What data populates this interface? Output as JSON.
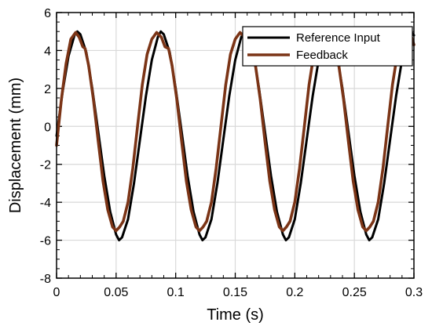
{
  "chart_data": {
    "type": "line",
    "title": "",
    "xlabel": "Time (s)",
    "ylabel": "Displacement (mm)",
    "xlim": [
      0,
      0.3
    ],
    "ylim": [
      -8,
      6
    ],
    "x_ticks": [
      0,
      0.05,
      0.1,
      0.15,
      0.2,
      0.25,
      0.3
    ],
    "x_tick_labels": [
      "0",
      "0.05",
      "0.1",
      "0.15",
      "0.2",
      "0.25",
      "0.3"
    ],
    "y_ticks": [
      -8,
      -6,
      -4,
      -2,
      0,
      2,
      4,
      6
    ],
    "y_tick_labels": [
      "-8",
      "-6",
      "-4",
      "-2",
      "0",
      "2",
      "4",
      "6"
    ],
    "grid": true,
    "legend_position": "top-right",
    "series": [
      {
        "name": "Reference Input",
        "color": "#000000",
        "x": [
          0,
          0.005,
          0.01,
          0.015,
          0.0175,
          0.02,
          0.025,
          0.03,
          0.035,
          0.04,
          0.045,
          0.05,
          0.0525,
          0.055,
          0.06,
          0.065,
          0.07,
          0.075,
          0.08,
          0.085,
          0.0875,
          0.09,
          0.095,
          0.1,
          0.105,
          0.11,
          0.115,
          0.12,
          0.1225,
          0.125,
          0.13,
          0.135,
          0.14,
          0.145,
          0.15,
          0.155,
          0.1575,
          0.16,
          0.165,
          0.17,
          0.175,
          0.18,
          0.185,
          0.19,
          0.1925,
          0.195,
          0.2,
          0.205,
          0.21,
          0.215,
          0.22,
          0.225,
          0.2275,
          0.23,
          0.235,
          0.24,
          0.245,
          0.25,
          0.255,
          0.26,
          0.2625,
          0.265,
          0.27,
          0.275,
          0.28,
          0.285,
          0.29,
          0.295,
          0.2975,
          0.3
        ],
        "y": [
          -0.5,
          1.8,
          3.7,
          4.8,
          5.0,
          4.85,
          3.9,
          2.0,
          -0.3,
          -2.6,
          -4.5,
          -5.7,
          -6.0,
          -5.85,
          -4.9,
          -3.0,
          -0.7,
          1.6,
          3.5,
          4.7,
          5.0,
          4.85,
          3.9,
          2.0,
          -0.3,
          -2.6,
          -4.5,
          -5.7,
          -6.0,
          -5.85,
          -4.9,
          -3.0,
          -0.7,
          1.6,
          3.5,
          4.7,
          5.0,
          4.85,
          3.9,
          2.0,
          -0.3,
          -2.6,
          -4.5,
          -5.7,
          -6.0,
          -5.85,
          -4.9,
          -3.0,
          -0.7,
          1.6,
          3.5,
          4.7,
          5.0,
          4.85,
          3.9,
          2.0,
          -0.3,
          -2.6,
          -4.5,
          -5.7,
          -6.0,
          -5.85,
          -4.9,
          -3.0,
          -0.7,
          1.6,
          3.5,
          4.7,
          5.0,
          4.8
        ]
      },
      {
        "name": "Feedback",
        "color": "#7b3416",
        "x": [
          0,
          0.004,
          0.008,
          0.012,
          0.016,
          0.019,
          0.022,
          0.024,
          0.027,
          0.031,
          0.035,
          0.039,
          0.043,
          0.047,
          0.05,
          0.053,
          0.056,
          0.06,
          0.064,
          0.068,
          0.072,
          0.076,
          0.08,
          0.084,
          0.088,
          0.091,
          0.094,
          0.097,
          0.101,
          0.105,
          0.109,
          0.113,
          0.117,
          0.12,
          0.123,
          0.126,
          0.13,
          0.134,
          0.138,
          0.142,
          0.146,
          0.15,
          0.154,
          0.158,
          0.161,
          0.164,
          0.167,
          0.171,
          0.175,
          0.179,
          0.183,
          0.187,
          0.19,
          0.193,
          0.196,
          0.2,
          0.204,
          0.208,
          0.212,
          0.216,
          0.22,
          0.224,
          0.228,
          0.231,
          0.234,
          0.237,
          0.241,
          0.245,
          0.249,
          0.253,
          0.257,
          0.26,
          0.263,
          0.266,
          0.27,
          0.274,
          0.278,
          0.282,
          0.286,
          0.29,
          0.294,
          0.298,
          0.3
        ],
        "y": [
          -1.0,
          1.4,
          3.3,
          4.6,
          4.95,
          4.7,
          4.2,
          4.1,
          3.2,
          1.4,
          -0.8,
          -2.9,
          -4.4,
          -5.3,
          -5.5,
          -5.3,
          -5.0,
          -4.0,
          -2.2,
          0.0,
          2.2,
          3.8,
          4.6,
          4.95,
          4.7,
          4.2,
          4.1,
          3.2,
          1.4,
          -0.8,
          -2.9,
          -4.4,
          -5.3,
          -5.5,
          -5.3,
          -5.0,
          -4.0,
          -2.2,
          0.0,
          2.2,
          3.8,
          4.6,
          4.95,
          4.7,
          4.2,
          4.1,
          3.2,
          1.4,
          -0.8,
          -2.9,
          -4.4,
          -5.3,
          -5.5,
          -5.3,
          -5.0,
          -4.0,
          -2.2,
          0.0,
          2.2,
          3.8,
          4.6,
          4.95,
          4.7,
          4.2,
          4.1,
          3.2,
          1.4,
          -0.8,
          -2.9,
          -4.4,
          -5.3,
          -5.5,
          -5.3,
          -5.0,
          -4.0,
          -2.2,
          0.0,
          2.2,
          3.8,
          4.6,
          4.95,
          4.7,
          4.3
        ]
      }
    ]
  }
}
